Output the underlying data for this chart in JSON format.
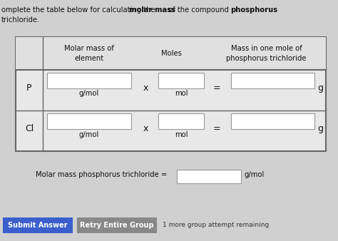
{
  "bg_color": "#d0d0d0",
  "table_bg": "#e8e8e8",
  "header_bg": "#e0e0e0",
  "input_box_color": "#ffffff",
  "border_color": "#666666",
  "btn1_bg": "#3a5fcd",
  "btn2_bg": "#888888",
  "btn_text_color": "#ffffff",
  "title_line1_normal1": "omplete the table below for calculating the ",
  "title_line1_bold1": "molar mass",
  "title_line1_normal2": " of the compound ",
  "title_line1_bold2": "phosphorus",
  "title_line2": "trichloride.",
  "header_col1": "Molar mass of\nelement",
  "header_col2": "Moles",
  "header_col3": "Mass in one mole of\nphosphorus trichloride",
  "row_labels": [
    "P",
    "Cl"
  ],
  "unit_below_box1": "g/mol",
  "unit_below_box2": "mol",
  "op1": "x",
  "op2": "=",
  "mass_unit": "g",
  "bottom_label": "Molar mass phosphorus trichloride =",
  "bottom_unit": "g/mol",
  "btn1_text": "Submit Answer",
  "btn2_text": "Retry Entire Group",
  "btn_note": "1 more group attempt remaining"
}
